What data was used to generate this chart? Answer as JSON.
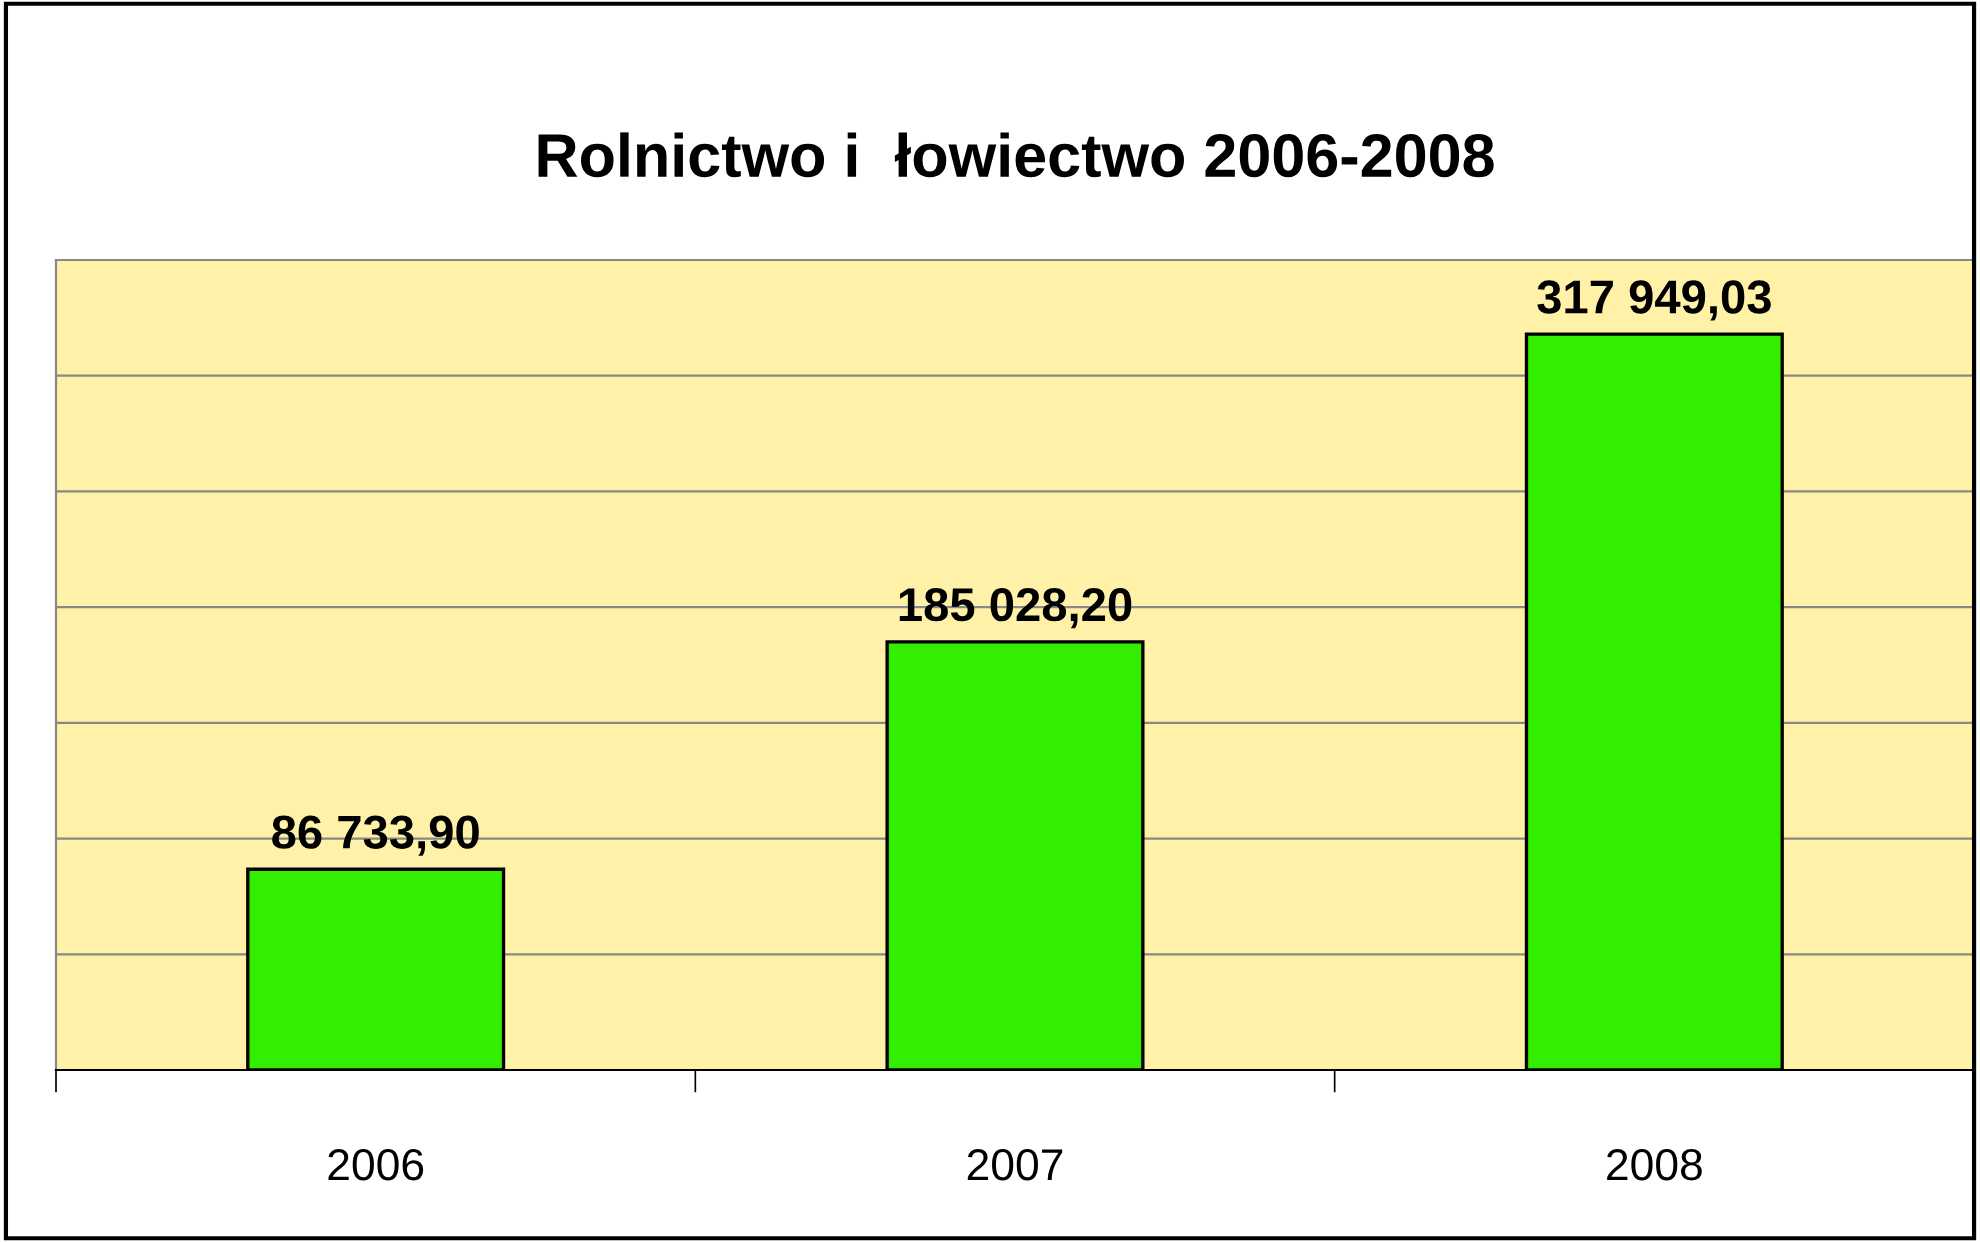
{
  "chart_data": {
    "type": "bar",
    "title": "Rolnictwo i  łowiectwo 2006-2008",
    "categories": [
      "2006",
      "2007",
      "2008"
    ],
    "values": [
      86733.9,
      185028.2,
      317949.03
    ],
    "value_labels": [
      "86 733,90",
      "185 028,20",
      "317 949,03"
    ],
    "color": "#33ee00",
    "ylim": [
      0,
      350000
    ],
    "yticks": [
      {
        "value": 0,
        "label": null
      },
      {
        "value": 50000,
        "label": null
      },
      {
        "value": 100000,
        "label": null
      },
      {
        "value": 150000,
        "label": null
      },
      {
        "value": 200000,
        "label": null
      },
      {
        "value": 250000,
        "label": null
      },
      {
        "value": 300000,
        "label": null
      },
      {
        "value": 350000,
        "label": null
      }
    ],
    "grid": "y",
    "tick_labels": "x",
    "legend": false
  }
}
